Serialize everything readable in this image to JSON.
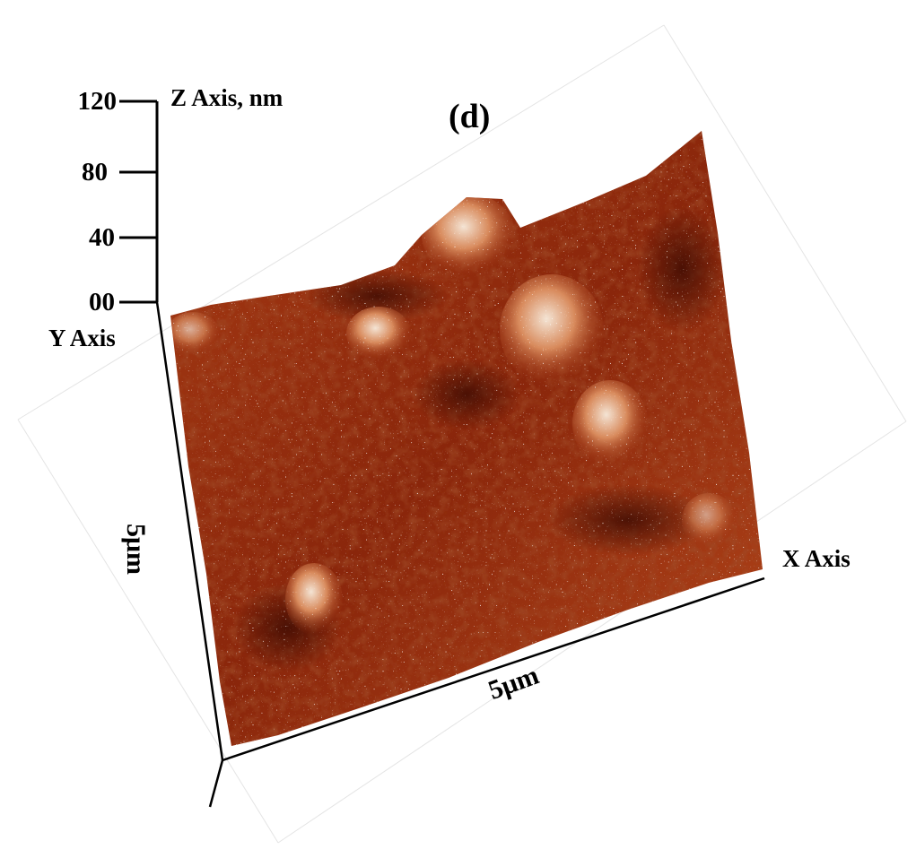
{
  "panel_label": "(d)",
  "z_axis": {
    "title": "Z Axis, nm",
    "ticks": [
      "120",
      "80",
      "40",
      "00"
    ]
  },
  "y_axis": {
    "title": "Y Axis",
    "length_label": "5μm"
  },
  "x_axis": {
    "title": "X Axis",
    "length_label": "5μm"
  },
  "colors": {
    "surface_dark": "#5a1206",
    "surface_mid": "#9e2f0e",
    "surface_light": "#f0e0d0",
    "axis": "#000000"
  }
}
